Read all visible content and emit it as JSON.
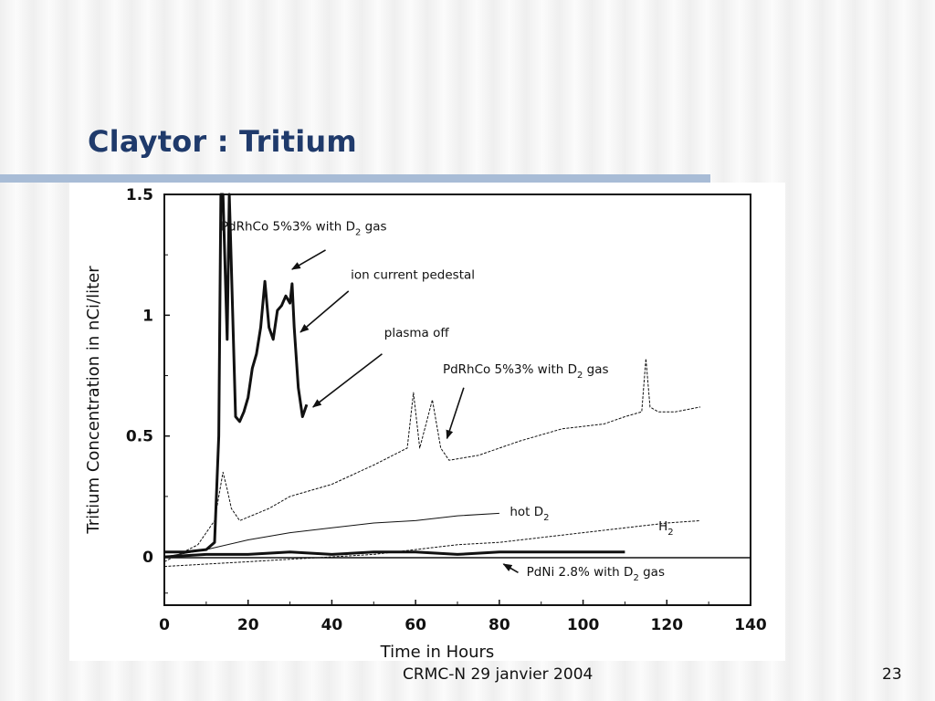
{
  "slide": {
    "title": "Claytor : Tritium",
    "footer": "CRMC-N 29 janvier 2004",
    "page_number": "23"
  },
  "chart_data": {
    "type": "line",
    "title": "",
    "xlabel": "Time in Hours",
    "ylabel": "Tritium Concentration in nCi/liter",
    "xlim": [
      0,
      140
    ],
    "ylim": [
      -0.2,
      1.5
    ],
    "xticks": [
      0,
      20,
      40,
      60,
      80,
      100,
      120,
      140
    ],
    "yticks": [
      0,
      0.5,
      1,
      1.5
    ],
    "ytick_labels": [
      "0",
      "0.5",
      "1",
      "1.5"
    ],
    "grid": false,
    "series": [
      {
        "style": "bold",
        "x": [
          0,
          5,
          10,
          12,
          13,
          13.5,
          14,
          15,
          15.5,
          16,
          17,
          18,
          19,
          20,
          21,
          22,
          23,
          24,
          25,
          26,
          27,
          28,
          29,
          30,
          30.5,
          31,
          32,
          33,
          34
        ],
        "y": [
          0.02,
          0.02,
          0.03,
          0.06,
          0.5,
          1.5,
          1.5,
          0.9,
          1.5,
          1.2,
          0.58,
          0.56,
          0.6,
          0.66,
          0.78,
          0.84,
          0.95,
          1.14,
          0.95,
          0.9,
          1.02,
          1.04,
          1.08,
          1.05,
          1.13,
          0.95,
          0.7,
          0.58,
          0.63
        ]
      },
      {
        "style": "thin",
        "x": [
          0,
          8,
          12,
          14,
          15,
          16,
          18,
          25,
          30,
          40,
          50,
          58,
          59.5,
          61,
          64,
          66,
          68,
          75,
          85,
          95,
          105,
          110,
          114,
          115,
          116,
          118,
          122,
          128
        ],
        "y": [
          -0.02,
          0.05,
          0.15,
          0.35,
          0.28,
          0.2,
          0.15,
          0.2,
          0.25,
          0.3,
          0.38,
          0.45,
          0.68,
          0.45,
          0.65,
          0.45,
          0.4,
          0.42,
          0.48,
          0.53,
          0.55,
          0.58,
          0.6,
          0.82,
          0.62,
          0.6,
          0.6,
          0.62
        ]
      },
      {
        "style": "thin",
        "x": [
          0,
          10,
          20,
          30,
          40,
          50,
          60,
          70,
          80
        ],
        "y": [
          0.0,
          0.03,
          0.07,
          0.1,
          0.12,
          0.14,
          0.15,
          0.17,
          0.18
        ]
      },
      {
        "style": "thin",
        "x": [
          0,
          10,
          20,
          30,
          40,
          50,
          60,
          70,
          80,
          90,
          100,
          110,
          120,
          128
        ],
        "y": [
          -0.04,
          -0.03,
          -0.02,
          -0.01,
          0.0,
          0.01,
          0.03,
          0.05,
          0.06,
          0.08,
          0.1,
          0.12,
          0.14,
          0.15
        ]
      },
      {
        "style": "bold",
        "x": [
          0,
          10,
          20,
          30,
          40,
          50,
          60,
          70,
          80,
          90,
          100,
          110
        ],
        "y": [
          0.0,
          0.01,
          0.01,
          0.02,
          0.01,
          0.02,
          0.02,
          0.01,
          0.02,
          0.02,
          0.02,
          0.02
        ]
      }
    ],
    "annotations": [
      {
        "text": "PdRhCo 5%3% with D",
        "sub": "2",
        "after": " gas",
        "at": [
          13.5,
          1.35
        ],
        "arrow_to": [
          30.5,
          1.19
        ],
        "arrow_from": [
          38.5,
          1.27
        ]
      },
      {
        "text": "ion current pedestal",
        "sub": "",
        "after": "",
        "at": [
          44.5,
          1.15
        ],
        "arrow_to": [
          32.5,
          0.93
        ],
        "arrow_from": [
          44,
          1.1
        ]
      },
      {
        "text": "plasma off",
        "sub": "",
        "after": "",
        "at": [
          52.5,
          0.91
        ],
        "arrow_to": [
          35.5,
          0.62
        ],
        "arrow_from": [
          52,
          0.84
        ]
      },
      {
        "text": "PdRhCo 5%3% with D",
        "sub": "2",
        "after": " gas",
        "at": [
          66.5,
          0.76
        ],
        "arrow_to": [
          67.5,
          0.49
        ],
        "arrow_from": [
          71.5,
          0.7
        ]
      },
      {
        "text": "hot D",
        "sub": "2",
        "after": "",
        "at": [
          82.5,
          0.17
        ]
      },
      {
        "text": "H",
        "sub": "2",
        "after": "",
        "at": [
          118,
          0.11
        ]
      },
      {
        "text": "PdNi 2.8% with D",
        "sub": "2",
        "after": " gas",
        "at": [
          86.5,
          -0.08
        ],
        "arrow_to": [
          81,
          -0.03
        ],
        "arrow_from": [
          84.5,
          -0.065
        ]
      }
    ]
  }
}
